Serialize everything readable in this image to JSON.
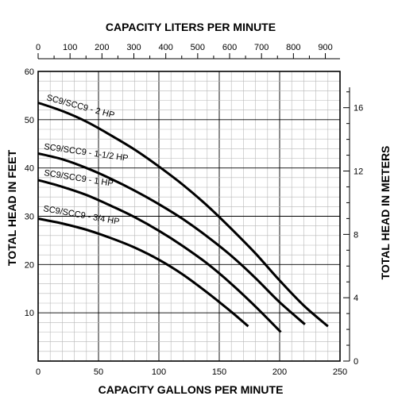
{
  "chart_data": {
    "type": "line",
    "xlabel": "CAPACITY GALLONS PER MINUTE",
    "ylabel": "TOTAL HEAD IN FEET",
    "x2label": "CAPACITY LITERS PER MINUTE",
    "y2label": "TOTAL HEAD IN METERS",
    "xlim": [
      0,
      250
    ],
    "ylim": [
      0,
      60
    ],
    "x2lim": [
      0,
      946
    ],
    "y2lim": [
      0,
      18.29
    ],
    "x_ticks": [
      0,
      50,
      100,
      150,
      200,
      250
    ],
    "y_ticks": [
      10,
      20,
      30,
      40,
      50,
      60
    ],
    "x2_ticks": [
      0,
      100,
      200,
      300,
      400,
      500,
      600,
      700,
      800,
      900
    ],
    "y2_ticks": [
      0,
      4,
      8,
      12,
      16
    ],
    "x_tick_labels": [
      "0",
      "50",
      "100",
      "150",
      "200",
      "250"
    ],
    "y_tick_labels": [
      "10",
      "20",
      "30",
      "40",
      "50",
      "60"
    ],
    "x2_tick_labels": [
      "0",
      "100",
      "200",
      "300",
      "400",
      "500",
      "600",
      "700",
      "800",
      "900"
    ],
    "y2_tick_labels": [
      "0",
      "4",
      "8",
      "12",
      "16"
    ],
    "grid": true,
    "series": [
      {
        "name": "SC9/SCC9 - 2 HP",
        "x": [
          0,
          20,
          40,
          60,
          80,
          100,
          120,
          140,
          160,
          180,
          200,
          220,
          240
        ],
        "y": [
          53.5,
          51.8,
          49.6,
          46.8,
          43.8,
          40.3,
          36.5,
          32.2,
          27.4,
          22.3,
          16.7,
          11.5,
          7.2
        ]
      },
      {
        "name": "SC9/SCC9 - 1-1/2 HP",
        "x": [
          0,
          20,
          40,
          60,
          80,
          100,
          120,
          140,
          160,
          180,
          200,
          221
        ],
        "y": [
          43,
          41.8,
          40,
          37.8,
          35.3,
          32.5,
          29.4,
          25.8,
          21.8,
          17.2,
          12.2,
          7.6
        ]
      },
      {
        "name": "SC9/SCC9 - 1 HP",
        "x": [
          0,
          20,
          40,
          60,
          80,
          100,
          120,
          140,
          160,
          180,
          201
        ],
        "y": [
          37.5,
          36.1,
          34.4,
          32.2,
          29.8,
          27,
          23.8,
          20.2,
          16,
          11.3,
          6
        ]
      },
      {
        "name": "SC9/SCC9 - 3/4 HP",
        "x": [
          0,
          20,
          40,
          60,
          80,
          100,
          120,
          140,
          160,
          174
        ],
        "y": [
          29.5,
          28.5,
          27.2,
          25.5,
          23.5,
          21,
          17.9,
          14.2,
          10.2,
          7.2
        ]
      }
    ],
    "annotations": [
      {
        "text": "SC9/SCC9 - 2 HP",
        "series": 0
      },
      {
        "text": "SC9/SCC9 - 1-1/2 HP",
        "series": 1
      },
      {
        "text": "SC9/SCC9 - 1 HP",
        "series": 2
      },
      {
        "text": "SC9/SCC9 - 3/4 HP",
        "series": 3
      }
    ]
  }
}
